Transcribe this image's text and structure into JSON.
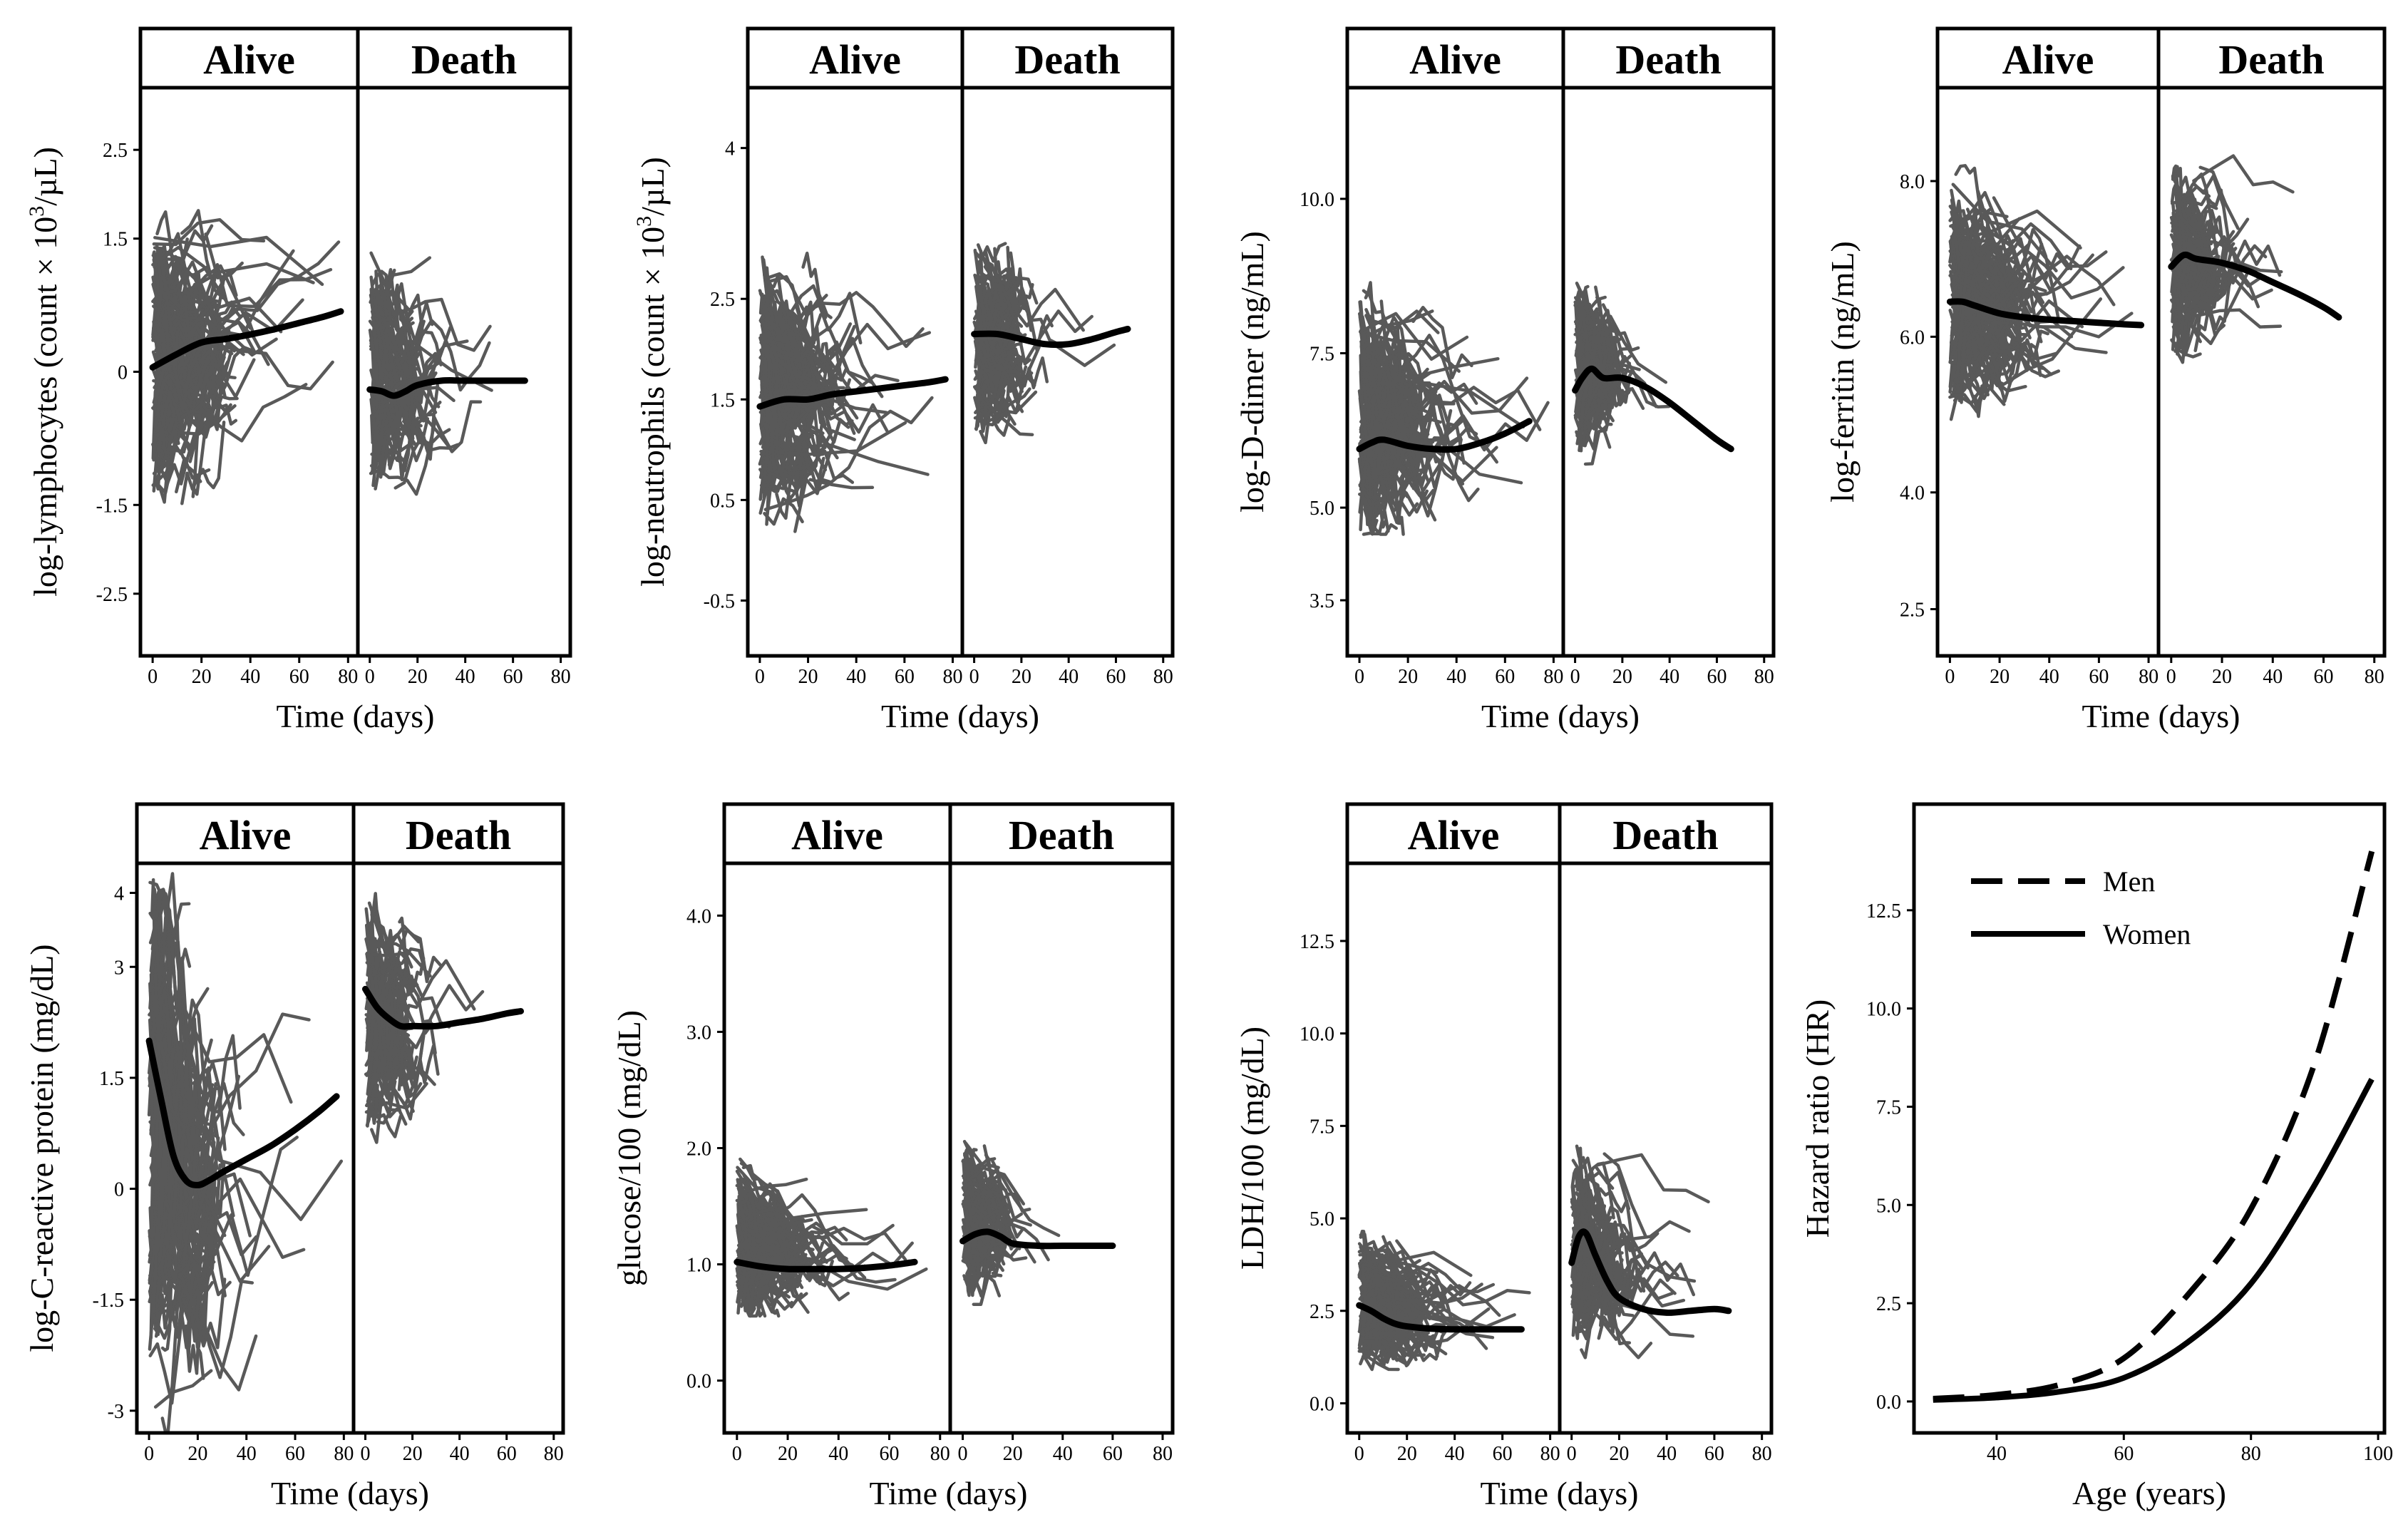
{
  "chart_data": [
    {
      "type": "line",
      "panel": "lymphocytes",
      "ylabel_pre": "log-lymphocytes (count × 10",
      "ylabel_sup": "3",
      "ylabel_post": "/µL)",
      "ylim": [
        -3.2,
        3.2
      ],
      "yticks": [
        2.5,
        1.5,
        0,
        -1.5,
        -2.5
      ],
      "ytick_labels": [
        "2.5",
        "1.5",
        "0",
        "-1.5",
        "-2.5"
      ],
      "xlabel": "Time (days)",
      "xlim": [
        -5,
        84
      ],
      "xticks": [
        0,
        20,
        40,
        60,
        80
      ],
      "xtick_labels": [
        "0",
        "20",
        "40",
        "60",
        "80"
      ],
      "facets": [
        {
          "label": "Alive",
          "band_low": -1.2,
          "band_high": 1.4,
          "band_xmax": 45,
          "smooth": {
            "x": [
              0,
              10,
              20,
              30,
              40,
              50,
              60,
              70,
              77
            ],
            "y": [
              0.05,
              0.2,
              0.33,
              0.37,
              0.42,
              0.48,
              0.55,
              0.62,
              0.68
            ]
          }
        },
        {
          "label": "Death",
          "band_low": -1.2,
          "band_high": 1.2,
          "band_xmax": 30,
          "smooth": {
            "x": [
              0,
              5,
              10,
              15,
              20,
              30,
              40,
              50,
              65
            ],
            "y": [
              -0.2,
              -0.22,
              -0.27,
              -0.22,
              -0.15,
              -0.1,
              -0.1,
              -0.1,
              -0.1
            ]
          }
        }
      ]
    },
    {
      "type": "line",
      "panel": "neutrophils",
      "ylabel_pre": "log-neutrophils (count × 10",
      "ylabel_sup": "3",
      "ylabel_post": "/µL)",
      "ylim": [
        -1.05,
        4.6
      ],
      "yticks": [
        4,
        2.5,
        1.5,
        0.5,
        -0.5
      ],
      "ytick_labels": [
        "4",
        "2.5",
        "1.5",
        "0.5",
        "-0.5"
      ],
      "xlabel": "Time (days)",
      "xlim": [
        -5,
        84
      ],
      "xticks": [
        0,
        20,
        40,
        60,
        80
      ],
      "xtick_labels": [
        "0",
        "20",
        "40",
        "60",
        "80"
      ],
      "facets": [
        {
          "label": "Alive",
          "band_low": 0.4,
          "band_high": 2.7,
          "band_xmax": 45,
          "smooth": {
            "x": [
              0,
              10,
              20,
              30,
              40,
              50,
              60,
              70,
              77
            ],
            "y": [
              1.43,
              1.5,
              1.5,
              1.55,
              1.58,
              1.61,
              1.64,
              1.67,
              1.7
            ]
          }
        },
        {
          "label": "Death",
          "band_low": 1.2,
          "band_high": 2.9,
          "band_xmax": 30,
          "smooth": {
            "x": [
              0,
              10,
              20,
              30,
              40,
              50,
              60,
              65
            ],
            "y": [
              2.15,
              2.15,
              2.1,
              2.05,
              2.05,
              2.1,
              2.17,
              2.2
            ]
          }
        }
      ]
    },
    {
      "type": "line",
      "panel": "d-dimer",
      "ylabel": "log-D-dimer (ng/mL)",
      "ylim": [
        2.6,
        11.8
      ],
      "yticks": [
        10.0,
        7.5,
        5.0,
        3.5
      ],
      "ytick_labels": [
        "10.0",
        "7.5",
        "5.0",
        "3.5"
      ],
      "xlabel": "Time (days)",
      "xlim": [
        -5,
        84
      ],
      "xticks": [
        0,
        20,
        40,
        60,
        80
      ],
      "xtick_labels": [
        "0",
        "20",
        "40",
        "60",
        "80"
      ],
      "facets": [
        {
          "label": "Alive",
          "band_low": 5.0,
          "band_high": 8.6,
          "band_xmax": 45,
          "smooth": {
            "x": [
              0,
              5,
              10,
              20,
              30,
              40,
              50,
              60,
              70
            ],
            "y": [
              5.95,
              6.05,
              6.1,
              6.0,
              5.95,
              5.95,
              6.05,
              6.2,
              6.4
            ]
          }
        },
        {
          "label": "Death",
          "band_low": 6.0,
          "band_high": 8.5,
          "band_xmax": 25,
          "smooth": {
            "x": [
              0,
              3,
              7,
              12,
              20,
              30,
              40,
              50,
              60,
              66
            ],
            "y": [
              6.9,
              7.1,
              7.25,
              7.1,
              7.1,
              6.95,
              6.7,
              6.4,
              6.1,
              5.95
            ]
          }
        }
      ]
    },
    {
      "type": "line",
      "panel": "ferritin",
      "ylabel": "log-ferritin (ng/mL)",
      "ylim": [
        1.9,
        9.2
      ],
      "yticks": [
        8.0,
        6.0,
        4.0,
        2.5
      ],
      "ytick_labels": [
        "8.0",
        "6.0",
        "4.0",
        "2.5"
      ],
      "xlabel": "Time (days)",
      "xlim": [
        -5,
        84
      ],
      "xticks": [
        0,
        20,
        40,
        60,
        80
      ],
      "xtick_labels": [
        "0",
        "20",
        "40",
        "60",
        "80"
      ],
      "facets": [
        {
          "label": "Alive",
          "band_low": 5.1,
          "band_high": 7.8,
          "band_xmax": 45,
          "smooth": {
            "x": [
              0,
              5,
              10,
              20,
              30,
              40,
              50,
              60,
              70,
              77
            ],
            "y": [
              6.45,
              6.45,
              6.4,
              6.3,
              6.25,
              6.22,
              6.2,
              6.18,
              6.16,
              6.15
            ]
          }
        },
        {
          "label": "Death",
          "band_low": 5.8,
          "band_high": 8.0,
          "band_xmax": 25,
          "smooth": {
            "x": [
              0,
              5,
              10,
              20,
              30,
              40,
              50,
              60,
              66
            ],
            "y": [
              6.9,
              7.05,
              7.0,
              6.95,
              6.85,
              6.7,
              6.55,
              6.38,
              6.25
            ]
          }
        }
      ]
    },
    {
      "type": "line",
      "panel": "c-reactive-protein",
      "ylabel": "log-C-reactive protein (mg/dL)",
      "ylim": [
        -3.3,
        4.4
      ],
      "yticks": [
        4,
        3,
        1.5,
        0,
        -1.5,
        -3
      ],
      "ytick_labels": [
        "4",
        "3",
        "1.5",
        "0",
        "-1.5",
        "-3"
      ],
      "xlabel": "Time (days)",
      "xlim": [
        -5,
        84
      ],
      "xticks": [
        0,
        20,
        40,
        60,
        80
      ],
      "xtick_labels": [
        "0",
        "20",
        "40",
        "60",
        "80"
      ],
      "facets": [
        {
          "label": "Alive",
          "band_low": -2.7,
          "band_high": 3.3,
          "band_xmax": 40,
          "smooth": {
            "x": [
              0,
              5,
              10,
              15,
              20,
              25,
              30,
              40,
              50,
              60,
              70,
              77
            ],
            "y": [
              2.0,
              1.2,
              0.45,
              0.12,
              0.05,
              0.12,
              0.22,
              0.4,
              0.58,
              0.8,
              1.05,
              1.25
            ]
          }
        },
        {
          "label": "Death",
          "band_low": 0.8,
          "band_high": 3.6,
          "band_xmax": 30,
          "smooth": {
            "x": [
              0,
              5,
              10,
              15,
              20,
              30,
              40,
              50,
              60,
              66
            ],
            "y": [
              2.7,
              2.45,
              2.3,
              2.2,
              2.2,
              2.2,
              2.25,
              2.3,
              2.37,
              2.4
            ]
          }
        }
      ]
    },
    {
      "type": "line",
      "panel": "glucose",
      "ylabel": "glucose/100 (mg/dL)",
      "ylim": [
        -0.45,
        4.45
      ],
      "yticks": [
        4.0,
        3.0,
        2.0,
        1.0,
        0.0
      ],
      "ytick_labels": [
        "4.0",
        "3.0",
        "2.0",
        "1.0",
        "0.0"
      ],
      "xlabel": "Time (days)",
      "xlim": [
        -5,
        84
      ],
      "xticks": [
        0,
        20,
        40,
        60,
        80
      ],
      "xtick_labels": [
        "0",
        "20",
        "40",
        "60",
        "80"
      ],
      "facets": [
        {
          "label": "Alive",
          "band_low": 0.7,
          "band_high": 1.9,
          "band_xmax": 40,
          "smooth": {
            "x": [
              0,
              10,
              20,
              30,
              40,
              50,
              60,
              70
            ],
            "y": [
              1.02,
              0.98,
              0.96,
              0.96,
              0.96,
              0.97,
              0.99,
              1.02
            ]
          }
        },
        {
          "label": "Death",
          "band_low": 0.8,
          "band_high": 2.0,
          "band_xmax": 25,
          "smooth": {
            "x": [
              0,
              5,
              10,
              15,
              20,
              30,
              40,
              50,
              60
            ],
            "y": [
              1.2,
              1.26,
              1.28,
              1.24,
              1.18,
              1.16,
              1.16,
              1.16,
              1.16
            ]
          }
        }
      ]
    },
    {
      "type": "line",
      "panel": "ldh",
      "ylabel": "LDH/100 (mg/dL)",
      "ylim": [
        -0.8,
        14.6
      ],
      "yticks": [
        12.5,
        10.0,
        7.5,
        5.0,
        2.5,
        0.0
      ],
      "ytick_labels": [
        "12.5",
        "10.0",
        "7.5",
        "5.0",
        "2.5",
        "0.0"
      ],
      "xlabel": "Time (days)",
      "xlim": [
        -5,
        84
      ],
      "xticks": [
        0,
        20,
        40,
        60,
        80
      ],
      "xtick_labels": [
        "0",
        "20",
        "40",
        "60",
        "80"
      ],
      "facets": [
        {
          "label": "Alive",
          "band_low": 1.3,
          "band_high": 4.5,
          "band_xmax": 40,
          "smooth": {
            "x": [
              0,
              5,
              10,
              15,
              20,
              30,
              40,
              50,
              60,
              68
            ],
            "y": [
              2.65,
              2.5,
              2.3,
              2.15,
              2.08,
              2.02,
              2.0,
              2.0,
              2.0,
              2.0
            ]
          }
        },
        {
          "label": "Death",
          "band_low": 1.8,
          "band_high": 6.5,
          "band_xmax": 30,
          "smooth": {
            "x": [
              0,
              3,
              6,
              10,
              15,
              20,
              30,
              40,
              50,
              60,
              66
            ],
            "y": [
              3.8,
              4.5,
              4.6,
              4.0,
              3.3,
              2.85,
              2.55,
              2.45,
              2.5,
              2.55,
              2.5
            ]
          }
        }
      ]
    },
    {
      "type": "line",
      "panel": "hazard-ratio",
      "ylabel": "Hazard ratio (HR)",
      "xlabel": "Age (years)",
      "xlim": [
        27,
        101
      ],
      "ylim": [
        -0.8,
        15.2
      ],
      "xticks": [
        40,
        60,
        80,
        100
      ],
      "xtick_labels": [
        "40",
        "60",
        "80",
        "100"
      ],
      "yticks": [
        12.5,
        10.0,
        7.5,
        5.0,
        2.5,
        0.0
      ],
      "ytick_labels": [
        "12.5",
        "10.0",
        "7.5",
        "5.0",
        "2.5",
        "0.0"
      ],
      "legend": {
        "position": "top-left",
        "entries": [
          "Men",
          "Women"
        ]
      },
      "series": [
        {
          "name": "Men",
          "style": "dashed",
          "x": [
            30,
            40,
            50,
            60,
            70,
            80,
            90,
            99
          ],
          "y": [
            0.07,
            0.17,
            0.43,
            1.1,
            2.7,
            4.9,
            8.6,
            14.0
          ]
        },
        {
          "name": "Women",
          "style": "solid",
          "x": [
            30,
            40,
            50,
            60,
            70,
            80,
            90,
            99
          ],
          "y": [
            0.04,
            0.1,
            0.25,
            0.6,
            1.5,
            3.0,
            5.5,
            8.2
          ]
        }
      ]
    }
  ]
}
